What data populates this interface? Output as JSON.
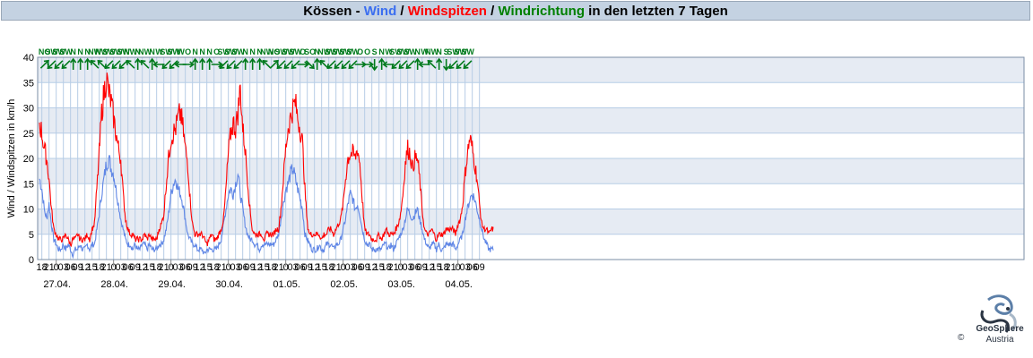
{
  "title": {
    "part1": "Kössen - ",
    "wind": "Wind",
    "sep1": " / ",
    "spitzen": "Windspitzen",
    "sep2": " / ",
    "richtung": "Windrichtung",
    "suffix": " in den letzten 7 Tagen"
  },
  "logo": {
    "line1": "GeoSphere",
    "line2": "Austria",
    "copyright": "©"
  },
  "colors": {
    "wind": "#5f86e6",
    "gust": "#ff0000",
    "direction": "#007a1c",
    "band": "#e6ebf3",
    "grid": "#b7cde6"
  },
  "chart_data": {
    "type": "line",
    "ylabel": "Wind / Windspitzen in km/h",
    "ylim": [
      0,
      40
    ],
    "yticks": [
      0,
      5,
      10,
      15,
      20,
      25,
      30,
      35,
      40
    ],
    "x_start": "26.04. 17:00",
    "x_hour_labels": [
      "18",
      "21",
      "0",
      "03",
      "06",
      "09",
      "12",
      "15",
      "18",
      "21",
      "0",
      "03",
      "06",
      "09",
      "12",
      "15",
      "18",
      "21",
      "0",
      "03",
      "06",
      "09",
      "12",
      "15",
      "18",
      "21",
      "0",
      "03",
      "06",
      "09",
      "12",
      "15",
      "18",
      "21",
      "0",
      "03",
      "06",
      "09",
      "12",
      "15",
      "18",
      "21",
      "0",
      "03",
      "06",
      "09",
      "12",
      "15",
      "18",
      "21",
      "0",
      "03",
      "06",
      "09",
      "12",
      "15",
      "18",
      "21",
      "0",
      "03",
      "06",
      "09"
    ],
    "date_labels": [
      "27.04.",
      "28.04.",
      "29.04.",
      "30.04.",
      "01.05.",
      "02.05.",
      "03.05.",
      "04.05."
    ],
    "directions": [
      "NO",
      "SW",
      "SW",
      "SW",
      "N",
      "N",
      "N",
      "NW",
      "NW",
      "SW",
      "SW",
      "SW",
      "NW",
      "N",
      "NW",
      "N",
      "W",
      "SW",
      "SW",
      "W",
      "O",
      "N",
      "N",
      "N",
      "O",
      "SW",
      "SW",
      "SW",
      "N",
      "N",
      "N",
      "NW",
      "NO",
      "SW",
      "SW",
      "SW",
      "O",
      "SO",
      "N",
      "NW",
      "SW",
      "SW",
      "SW",
      "SW",
      "O",
      "O",
      "S",
      "N",
      "W",
      "SW",
      "SW",
      "SW",
      "N",
      "W",
      "NW",
      "N",
      "S",
      "SW",
      "SW",
      "SW"
    ],
    "series": [
      {
        "name": "Wind",
        "color": "#5f86e6",
        "hourly_values": [
          16,
          14,
          10,
          8,
          11,
          7,
          4,
          3,
          2,
          2,
          3,
          2,
          3,
          2,
          1,
          2,
          2,
          3,
          2,
          2,
          3,
          2,
          3,
          3,
          6,
          9,
          13,
          16,
          19,
          20,
          18,
          17,
          14,
          11,
          8,
          6,
          4,
          3,
          3,
          2,
          3,
          2,
          2,
          3,
          3,
          2,
          3,
          2,
          2,
          2,
          3,
          3,
          4,
          6,
          9,
          13,
          15,
          16,
          14,
          13,
          11,
          8,
          5,
          4,
          3,
          3,
          2,
          2,
          2,
          1,
          2,
          2,
          2,
          2,
          2,
          3,
          4,
          7,
          10,
          13,
          14,
          13,
          15,
          17,
          13,
          10,
          7,
          5,
          4,
          4,
          3,
          3,
          2,
          3,
          3,
          3,
          3,
          3,
          3,
          4,
          5,
          8,
          11,
          14,
          15,
          17,
          18,
          16,
          14,
          12,
          10,
          5,
          4,
          3,
          2,
          2,
          2,
          3,
          2,
          2,
          3,
          3,
          3,
          2,
          3,
          3,
          4,
          6,
          8,
          11,
          13,
          12,
          10,
          11,
          9,
          6,
          4,
          3,
          3,
          2,
          2,
          2,
          2,
          2,
          3,
          3,
          2,
          3,
          2,
          3,
          4,
          5,
          6,
          8,
          10,
          9,
          8,
          9,
          10,
          8,
          6,
          4,
          3,
          2,
          3,
          3,
          2,
          3,
          2,
          2,
          3,
          3,
          3,
          3,
          2,
          3,
          4,
          5,
          8,
          10,
          12,
          13,
          12,
          10,
          8,
          6,
          4,
          3,
          2,
          2,
          2
        ]
      },
      {
        "name": "Windspitzen",
        "color": "#ff0000",
        "hourly_values": [
          27,
          25,
          22,
          20,
          16,
          10,
          6,
          5,
          4,
          4,
          4,
          5,
          4,
          3,
          4,
          4,
          5,
          4,
          4,
          4,
          5,
          4,
          6,
          7,
          14,
          21,
          29,
          33,
          36,
          33,
          31,
          28,
          25,
          22,
          20,
          13,
          8,
          6,
          5,
          5,
          4,
          4,
          4,
          4,
          5,
          4,
          5,
          4,
          4,
          4,
          6,
          7,
          9,
          15,
          20,
          24,
          25,
          26,
          28,
          29,
          26,
          22,
          19,
          12,
          7,
          5,
          5,
          5,
          5,
          4,
          3,
          4,
          5,
          4,
          4,
          5,
          6,
          8,
          14,
          21,
          25,
          27,
          26,
          29,
          34,
          26,
          22,
          16,
          10,
          6,
          5,
          5,
          5,
          5,
          4,
          5,
          5,
          5,
          5,
          6,
          6,
          10,
          16,
          22,
          26,
          28,
          30,
          31,
          28,
          26,
          23,
          14,
          7,
          5,
          5,
          5,
          5,
          5,
          4,
          5,
          5,
          6,
          6,
          5,
          6,
          7,
          8,
          11,
          16,
          20,
          21,
          21,
          20,
          22,
          19,
          12,
          6,
          5,
          5,
          4,
          4,
          4,
          5,
          4,
          5,
          6,
          5,
          5,
          5,
          6,
          7,
          9,
          13,
          19,
          22,
          21,
          18,
          20,
          20,
          16,
          10,
          6,
          5,
          5,
          6,
          5,
          4,
          5,
          5,
          5,
          6,
          6,
          6,
          6,
          5,
          7,
          8,
          11,
          17,
          21,
          24,
          22,
          19,
          16,
          11,
          7,
          6,
          6,
          5,
          6,
          6
        ]
      }
    ]
  }
}
